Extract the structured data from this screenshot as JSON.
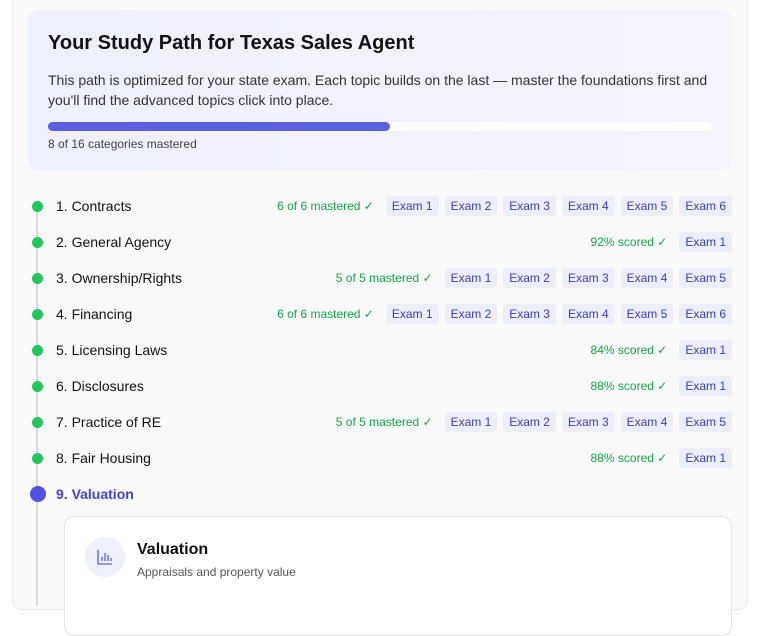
{
  "hero": {
    "title": "Your Study Path for Texas Sales Agent",
    "description": "This path is optimized for your state exam. Each topic builds on the last — master the foundations first and you'll find the advanced topics click into place.",
    "progress_mastered": 8,
    "progress_total": 16,
    "progress_caption": "8 of 16 categories mastered"
  },
  "topics": [
    {
      "label": "1. Contracts",
      "status": "6 of 6 mastered ✓",
      "exams": [
        "Exam 1",
        "Exam 2",
        "Exam 3",
        "Exam 4",
        "Exam 5",
        "Exam 6"
      ]
    },
    {
      "label": "2. General Agency",
      "status": "92% scored ✓",
      "exams": [
        "Exam 1"
      ]
    },
    {
      "label": "3. Ownership/Rights",
      "status": "5 of 5 mastered ✓",
      "exams": [
        "Exam 1",
        "Exam 2",
        "Exam 3",
        "Exam 4",
        "Exam 5"
      ]
    },
    {
      "label": "4. Financing",
      "status": "6 of 6 mastered ✓",
      "exams": [
        "Exam 1",
        "Exam 2",
        "Exam 3",
        "Exam 4",
        "Exam 5",
        "Exam 6"
      ]
    },
    {
      "label": "5. Licensing Laws",
      "status": "84% scored ✓",
      "exams": [
        "Exam 1"
      ]
    },
    {
      "label": "6. Disclosures",
      "status": "88% scored ✓",
      "exams": [
        "Exam 1"
      ]
    },
    {
      "label": "7. Practice of RE",
      "status": "5 of 5 mastered ✓",
      "exams": [
        "Exam 1",
        "Exam 2",
        "Exam 3",
        "Exam 4",
        "Exam 5"
      ]
    },
    {
      "label": "8. Fair Housing",
      "status": "88% scored ✓",
      "exams": [
        "Exam 1"
      ]
    }
  ],
  "current": {
    "label": "9. Valuation",
    "card_title": "Valuation",
    "card_subtitle": "Appraisals and property value",
    "icon": "bar-chart-icon"
  },
  "colors": {
    "accent": "#5b5fe0",
    "success": "#22c55e"
  }
}
